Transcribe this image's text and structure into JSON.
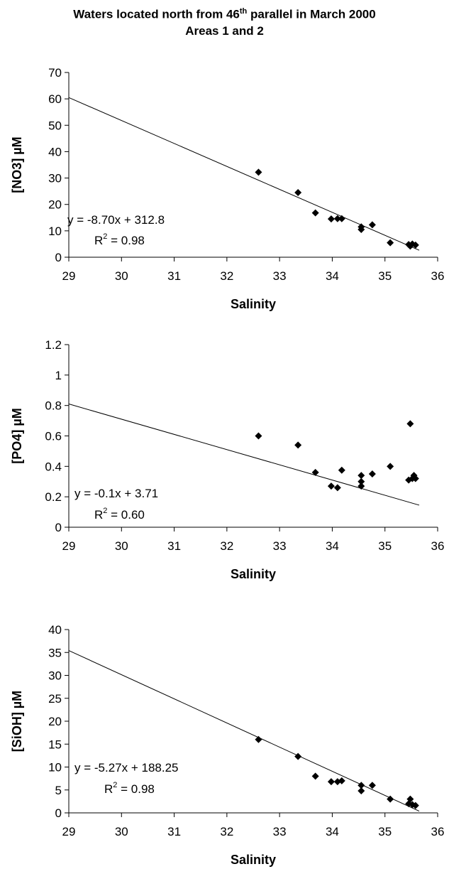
{
  "figure": {
    "title_line1_pre": "Waters located north from 46",
    "title_line1_sup": "th",
    "title_line1_post": " parallel in March 2000",
    "title_line2": "Areas 1 and 2"
  },
  "chart_data": [
    {
      "type": "scatter",
      "xlabel": "Salinity",
      "ylabel": "[NO3] µM",
      "xlim": [
        29,
        36
      ],
      "ylim": [
        0,
        70
      ],
      "xticks": [
        "29",
        "30",
        "31",
        "32",
        "33",
        "34",
        "35",
        "36"
      ],
      "yticks": [
        "0",
        "10",
        "20",
        "30",
        "40",
        "50",
        "60",
        "70"
      ],
      "grid": false,
      "points": [
        [
          32.6,
          32.2
        ],
        [
          33.35,
          24.5
        ],
        [
          33.68,
          16.8
        ],
        [
          33.98,
          14.5
        ],
        [
          34.1,
          14.6
        ],
        [
          34.18,
          14.6
        ],
        [
          34.55,
          11.5
        ],
        [
          34.55,
          10.5
        ],
        [
          34.76,
          12.3
        ],
        [
          35.1,
          5.5
        ],
        [
          35.45,
          4.8
        ],
        [
          35.48,
          4.2
        ],
        [
          35.52,
          5.0
        ],
        [
          35.58,
          4.6
        ]
      ],
      "trendline": {
        "slope": -8.7,
        "intercept": 312.8
      },
      "equation": "y = -8.70x + 312.8",
      "r2_label": "R",
      "r2_sup": "2",
      "r2_value": " = 0.98"
    },
    {
      "type": "scatter",
      "xlabel": "Salinity",
      "ylabel": "[PO4] µM",
      "xlim": [
        29,
        36
      ],
      "ylim": [
        0,
        1.2
      ],
      "xticks": [
        "29",
        "30",
        "31",
        "32",
        "33",
        "34",
        "35",
        "36"
      ],
      "yticks": [
        "0",
        "0.2",
        "0.4",
        "0.6",
        "0.8",
        "1",
        "1.2"
      ],
      "grid": false,
      "points": [
        [
          32.6,
          0.6
        ],
        [
          33.35,
          0.54
        ],
        [
          33.68,
          0.36
        ],
        [
          33.98,
          0.27
        ],
        [
          34.1,
          0.26
        ],
        [
          34.18,
          0.375
        ],
        [
          34.55,
          0.34
        ],
        [
          34.55,
          0.3
        ],
        [
          34.55,
          0.27
        ],
        [
          34.76,
          0.35
        ],
        [
          35.1,
          0.4
        ],
        [
          35.45,
          0.31
        ],
        [
          35.48,
          0.68
        ],
        [
          35.52,
          0.32
        ],
        [
          35.55,
          0.34
        ],
        [
          35.58,
          0.32
        ]
      ],
      "trendline": {
        "slope": -0.1,
        "intercept": 3.71
      },
      "equation": "y = -0.1x + 3.71",
      "r2_label": "R",
      "r2_sup": "2",
      "r2_value": " = 0.60"
    },
    {
      "type": "scatter",
      "xlabel": "Salinity",
      "ylabel": "[SiOH] µM",
      "xlim": [
        29,
        36
      ],
      "ylim": [
        0,
        40
      ],
      "xticks": [
        "29",
        "30",
        "31",
        "32",
        "33",
        "34",
        "35",
        "36"
      ],
      "yticks": [
        "0",
        "5",
        "10",
        "15",
        "20",
        "25",
        "30",
        "35",
        "40"
      ],
      "grid": false,
      "points": [
        [
          32.6,
          16.0
        ],
        [
          33.35,
          12.3
        ],
        [
          33.68,
          8.0
        ],
        [
          33.98,
          6.8
        ],
        [
          34.1,
          6.8
        ],
        [
          34.18,
          7.0
        ],
        [
          34.55,
          6.0
        ],
        [
          34.55,
          4.8
        ],
        [
          34.76,
          6.0
        ],
        [
          35.1,
          3.0
        ],
        [
          35.45,
          2.0
        ],
        [
          35.48,
          3.0
        ],
        [
          35.52,
          1.8
        ],
        [
          35.58,
          1.6
        ]
      ],
      "trendline": {
        "slope": -5.27,
        "intercept": 188.25
      },
      "equation": "y = -5.27x + 188.25",
      "r2_label": "R",
      "r2_sup": "2",
      "r2_value": " = 0.98"
    }
  ]
}
